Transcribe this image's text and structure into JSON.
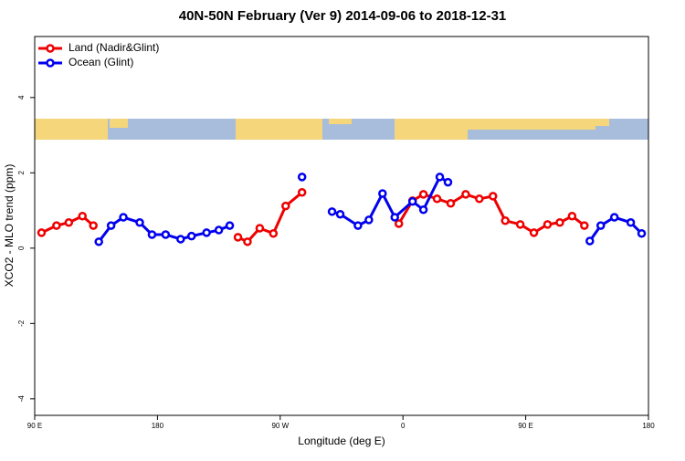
{
  "chart_data": {
    "type": "line",
    "title": "40N-50N February (Ver 9)   2014-09-06 to 2018-12-31",
    "x_label": "Longitude (deg E)",
    "y_label": "XCO2 - MLO trend (ppm)",
    "xlim": [
      90,
      540
    ],
    "ylim": [
      -4.44,
      5.62
    ],
    "xticks": [
      {
        "value": 90,
        "label": "90 E"
      },
      180,
      {
        "value": 270,
        "label": "90 W"
      },
      {
        "value": 360,
        "label": "0"
      },
      {
        "value": 450,
        "label": "90 E"
      },
      {
        "value": 540,
        "label": "180"
      }
    ],
    "yticks": [
      -4,
      -2,
      0,
      2,
      4
    ],
    "legend": "top-left",
    "series": [
      {
        "name": "Land (Nadir&Glint)",
        "color": "#ee0000",
        "x": [
          95,
          106,
          115,
          125,
          133,
          null,
          239,
          246,
          255,
          265,
          274,
          286,
          null,
          357,
          367,
          375,
          385,
          395,
          406,
          416,
          426,
          435,
          446,
          456,
          466,
          475,
          484,
          493
        ],
        "values": [
          0.41,
          0.6,
          0.68,
          0.85,
          0.6,
          null,
          0.29,
          0.17,
          0.53,
          0.39,
          1.12,
          1.48,
          null,
          0.65,
          1.26,
          1.43,
          1.31,
          1.19,
          1.43,
          1.31,
          1.38,
          0.73,
          0.63,
          0.41,
          0.63,
          0.68,
          0.85,
          0.6
        ]
      },
      {
        "name": "Ocean (Glint)",
        "color": "#0000ee",
        "x": [
          137,
          146,
          155,
          167,
          176,
          186,
          197,
          205,
          216,
          225,
          233,
          null,
          286,
          null,
          308,
          314,
          327,
          335,
          345,
          354,
          367,
          375,
          387,
          393,
          null,
          497,
          505,
          515,
          527,
          535
        ],
        "values": [
          0.17,
          0.6,
          0.82,
          0.68,
          0.36,
          0.36,
          0.24,
          0.32,
          0.41,
          0.48,
          0.6,
          null,
          1.89,
          null,
          0.97,
          0.9,
          0.6,
          0.75,
          1.45,
          0.82,
          1.24,
          1.02,
          1.89,
          1.75,
          null,
          0.19,
          0.6,
          0.82,
          0.68,
          0.39
        ]
      }
    ]
  }
}
